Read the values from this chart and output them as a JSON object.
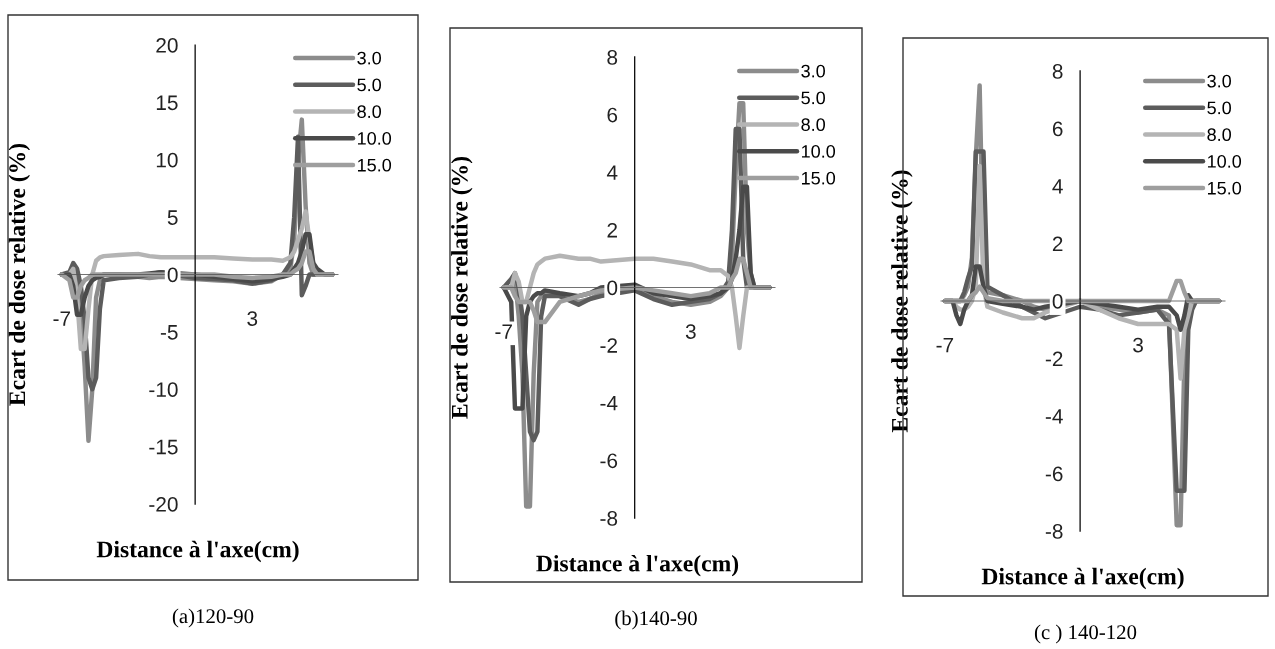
{
  "chart_data": [
    {
      "type": "line",
      "xlabel": "Distance à l'axe(cm)",
      "ylabel": "Ecart de dose relative (%)",
      "annotations": [
        "(a)120-90"
      ],
      "legend": "top right",
      "grid": false,
      "marker": "none",
      "line_style": "solid",
      "x": [
        -7,
        -6.6,
        -6.4,
        -6.2,
        -6.0,
        -5.8,
        -5.6,
        -5.4,
        -5.2,
        -5.0,
        -4.8,
        -4,
        -3,
        -2.4,
        -1.8,
        0,
        1,
        2,
        3,
        4,
        4.6,
        5.0,
        5.2,
        5.4,
        5.6,
        5.8,
        6.0,
        6.2,
        6.4,
        6.8,
        7.2
      ],
      "xlim": [
        -7.2,
        7.5
      ],
      "xticks": [
        -7,
        3
      ],
      "ylim": [
        -20,
        20
      ],
      "yticks": [
        -20,
        -15,
        -10,
        -5,
        0,
        5,
        10,
        15,
        20
      ],
      "series": [
        {
          "name": "3.0",
          "color": "#8c8c8c",
          "values": [
            0,
            0,
            0.5,
            -1,
            -3,
            -8,
            -14.5,
            -10,
            -2,
            -0.5,
            0,
            0,
            -0.2,
            -0.3,
            -0.2,
            -0.4,
            -0.5,
            -0.6,
            -0.8,
            -0.6,
            0,
            0.5,
            3,
            10,
            13.5,
            6,
            1,
            0,
            0,
            0,
            0
          ]
        },
        {
          "name": "5.0",
          "color": "#5c5c5c",
          "values": [
            0,
            0.2,
            1,
            0.5,
            -1,
            -4,
            -9,
            -10,
            -9,
            -3,
            -0.5,
            -0.3,
            -0.2,
            0,
            0.2,
            -0.3,
            -0.4,
            -0.5,
            -0.8,
            -0.5,
            0,
            1,
            5,
            12,
            -1.8,
            -1,
            0,
            0,
            0,
            0,
            0
          ]
        },
        {
          "name": "8.0",
          "color": "#b4b4b4",
          "values": [
            0,
            0,
            0.5,
            -2,
            -6.5,
            -6.5,
            -3,
            0,
            1.2,
            1.5,
            1.6,
            1.7,
            1.8,
            1.6,
            1.5,
            1.5,
            1.5,
            1.4,
            1.3,
            1.3,
            1.2,
            1.5,
            2,
            3,
            4,
            5.5,
            3,
            1,
            0,
            0,
            0
          ]
        },
        {
          "name": "10.0",
          "color": "#4a4a4a",
          "values": [
            0,
            0,
            -1,
            -3.5,
            -3.5,
            -2,
            -1,
            -0.5,
            -0.3,
            -0.2,
            0,
            0,
            0,
            0.1,
            0.2,
            0,
            -0.2,
            -0.4,
            -0.6,
            -0.4,
            -0.2,
            0,
            0.5,
            1,
            2,
            3.5,
            3.5,
            1,
            0.5,
            0,
            0
          ]
        },
        {
          "name": "15.0",
          "color": "#9e9e9e",
          "values": [
            0,
            -0.5,
            -2,
            -2,
            -1,
            -0.5,
            -0.3,
            0,
            0,
            0,
            0,
            0,
            0,
            0,
            0,
            0,
            0,
            -0.2,
            -0.3,
            -0.2,
            0,
            0,
            0.3,
            0.5,
            1,
            2,
            2,
            0.5,
            0,
            0,
            0
          ]
        }
      ]
    },
    {
      "type": "line",
      "xlabel": "Distance à l'axe(cm)",
      "ylabel": "Ecart de dose relative (%)",
      "annotations": [
        "(b)140-90"
      ],
      "legend": "top right",
      "grid": false,
      "marker": "none",
      "line_style": "solid",
      "x": [
        -7,
        -6.6,
        -6.4,
        -6.2,
        -6.0,
        -5.8,
        -5.6,
        -5.4,
        -5.2,
        -5.0,
        -4.8,
        -4,
        -3,
        -2.4,
        -1.8,
        0,
        1,
        2,
        3,
        4,
        4.6,
        5.0,
        5.2,
        5.4,
        5.6,
        5.8,
        6.0,
        6.2,
        6.4,
        6.8,
        7.2
      ],
      "xlim": [
        -7.2,
        7.5
      ],
      "xticks": [
        -7,
        3
      ],
      "ylim": [
        -8,
        8
      ],
      "yticks": [
        -8,
        -6,
        -4,
        -2,
        0,
        2,
        4,
        6,
        8
      ],
      "series": [
        {
          "name": "3.0",
          "color": "#8c8c8c",
          "values": [
            0,
            0,
            0.3,
            -1,
            -3,
            -7.6,
            -7.6,
            -3,
            -0.5,
            -0.3,
            -0.2,
            -0.3,
            -0.5,
            -0.4,
            -0.2,
            0,
            -0.3,
            -0.5,
            -0.6,
            -0.5,
            -0.3,
            0,
            1,
            4,
            6.4,
            6.4,
            2,
            0.5,
            0,
            0,
            0
          ]
        },
        {
          "name": "5.0",
          "color": "#5c5c5c",
          "values": [
            0,
            0.3,
            0.5,
            0,
            -1,
            -3,
            -5,
            -5.3,
            -5,
            -1,
            -0.3,
            -0.3,
            -0.6,
            -0.4,
            -0.3,
            -0.1,
            -0.4,
            -0.6,
            -0.5,
            -0.4,
            -0.2,
            0.2,
            2,
            5.5,
            5.5,
            1,
            0,
            0,
            0,
            0,
            0
          ]
        },
        {
          "name": "8.0",
          "color": "#b4b4b4",
          "values": [
            0,
            0,
            0.5,
            0.2,
            -0.5,
            -0.5,
            0,
            0.5,
            0.8,
            0.9,
            1.0,
            1.1,
            1.0,
            1.0,
            0.9,
            1.0,
            1.0,
            0.9,
            0.8,
            0.6,
            0.6,
            0.4,
            0,
            -1,
            -2.1,
            -1,
            0,
            0,
            0,
            0,
            0
          ]
        },
        {
          "name": "10.0",
          "color": "#4a4a4a",
          "values": [
            0,
            -0.5,
            -4.2,
            -4.2,
            -4.2,
            -1,
            -0.5,
            -0.3,
            -0.2,
            -0.2,
            -0.1,
            -0.2,
            -0.3,
            -0.2,
            0,
            0.1,
            -0.2,
            -0.3,
            -0.4,
            -0.3,
            -0.2,
            0,
            0.3,
            1,
            2,
            3.5,
            3.5,
            0.5,
            0,
            0,
            0
          ]
        },
        {
          "name": "15.0",
          "color": "#9e9e9e",
          "values": [
            0,
            0,
            -0.3,
            -0.5,
            -0.5,
            -0.5,
            -0.5,
            -0.8,
            -1.2,
            -1.2,
            -1.2,
            -0.5,
            -0.3,
            -0.2,
            -0.1,
            0,
            -0.1,
            -0.2,
            -0.3,
            -0.2,
            0,
            0,
            0.3,
            0.5,
            1,
            1,
            0.5,
            0,
            0,
            0,
            0
          ]
        }
      ]
    },
    {
      "type": "line",
      "xlabel": "Distance à l'axe(cm)",
      "ylabel": "Ecart de dose relative (%)",
      "annotations": [
        "(c ) 140-120"
      ],
      "legend": "top right",
      "grid": false,
      "marker": "none",
      "line_style": "solid",
      "x": [
        -7,
        -6.6,
        -6.4,
        -6.2,
        -6.0,
        -5.8,
        -5.6,
        -5.4,
        -5.2,
        -5.0,
        -4.8,
        -4,
        -3,
        -2.4,
        -1.8,
        0,
        1,
        2,
        3,
        4,
        4.6,
        5.0,
        5.2,
        5.4,
        5.6,
        5.8,
        6.0,
        6.2,
        6.4,
        6.8,
        7.2
      ],
      "xlim": [
        -7.2,
        7.5
      ],
      "xticks": [
        -7,
        3
      ],
      "ylim": [
        -8,
        8
      ],
      "yticks": [
        -8,
        -6,
        -4,
        -2,
        0,
        2,
        4,
        6,
        8
      ],
      "series": [
        {
          "name": "3.0",
          "color": "#8c8c8c",
          "values": [
            0,
            0,
            0,
            0,
            0.2,
            0.5,
            1.5,
            5,
            7.5,
            1,
            0.3,
            0.2,
            0,
            -0.2,
            -0.3,
            0,
            -0.2,
            -0.3,
            -0.4,
            -0.3,
            -0.5,
            -7.8,
            -7.8,
            -2,
            -0.5,
            0,
            0,
            0,
            0,
            0,
            0
          ]
        },
        {
          "name": "5.0",
          "color": "#5c5c5c",
          "values": [
            0,
            0,
            0,
            0,
            0.3,
            0.8,
            1.2,
            5.2,
            5.2,
            5.2,
            0.5,
            0.2,
            -0.2,
            -0.4,
            -0.6,
            -0.2,
            -0.3,
            -0.5,
            -0.4,
            -0.3,
            -0.8,
            -6.6,
            -6.6,
            -6.6,
            -1,
            -0.3,
            0,
            0,
            0,
            0,
            0
          ]
        },
        {
          "name": "8.0",
          "color": "#b4b4b4",
          "values": [
            0,
            0,
            -0.2,
            -0.3,
            -0.3,
            -0.2,
            0,
            0.5,
            4.7,
            0.5,
            -0.2,
            -0.4,
            -0.6,
            -0.6,
            -0.4,
            0,
            -0.3,
            -0.6,
            -0.8,
            -0.8,
            -0.8,
            -1.0,
            -2.7,
            -1,
            -0.5,
            0,
            0,
            0,
            0,
            0,
            0
          ]
        },
        {
          "name": "10.0",
          "color": "#4a4a4a",
          "values": [
            0,
            0,
            -0.5,
            -0.8,
            -0.3,
            0,
            0.2,
            1.2,
            1.2,
            0.5,
            0,
            -0.1,
            -0.2,
            -0.3,
            -0.2,
            0,
            -0.1,
            -0.2,
            -0.3,
            -0.2,
            -0.2,
            -0.5,
            -1,
            -0.5,
            0.2,
            0,
            0,
            0,
            0,
            0,
            0
          ]
        },
        {
          "name": "15.0",
          "color": "#9e9e9e",
          "values": [
            0,
            0,
            0,
            0,
            0,
            0,
            0.2,
            0.3,
            0.5,
            0.3,
            0.1,
            0,
            0,
            0,
            0,
            0,
            0,
            0,
            0,
            0,
            0,
            0.7,
            0.7,
            0.3,
            0,
            0,
            0,
            0,
            0,
            0,
            0
          ]
        }
      ]
    }
  ]
}
